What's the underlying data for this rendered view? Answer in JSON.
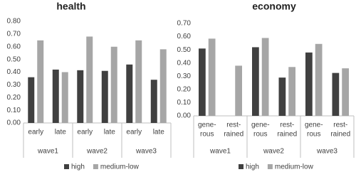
{
  "chart_data": [
    {
      "type": "bar",
      "title": "health",
      "categories": [
        "early",
        "late",
        "early",
        "late",
        "early",
        "late"
      ],
      "groups": [
        "wave1",
        "wave2",
        "wave3"
      ],
      "series": [
        {
          "name": "high",
          "color": "#404040",
          "values": [
            0.36,
            0.42,
            0.415,
            0.41,
            0.46,
            0.34
          ]
        },
        {
          "name": "medium-low",
          "color": "#a6a6a6",
          "values": [
            0.65,
            0.4,
            0.68,
            0.6,
            0.65,
            0.58
          ]
        }
      ],
      "ylim": [
        0,
        0.8
      ],
      "yticks": [
        {
          "value": 0,
          "label": "0.00"
        },
        {
          "value": 0.1,
          "label": "0.10"
        },
        {
          "value": 0.2,
          "label": "0.20"
        },
        {
          "value": 0.3,
          "label": "0.30"
        },
        {
          "value": 0.4,
          "label": "0.40"
        },
        {
          "value": 0.5,
          "label": "0.50"
        },
        {
          "value": 0.6,
          "label": "0.60"
        },
        {
          "value": 0.7,
          "label": "0.70"
        },
        {
          "value": 0.8,
          "label": "0.80"
        }
      ],
      "grid": false,
      "legend": "bottom"
    },
    {
      "type": "bar",
      "title": "economy",
      "categories": [
        [
          "gene-",
          "rous"
        ],
        [
          "rest-",
          "rained"
        ],
        [
          "gene-",
          "rous"
        ],
        [
          "rest-",
          "rained"
        ],
        [
          "gene-",
          "rous"
        ],
        [
          "rest-",
          "rained"
        ]
      ],
      "groups": [
        "wave1",
        "wave2",
        "wave3"
      ],
      "series": [
        {
          "name": "high",
          "color": "#404040",
          "values": [
            0.51,
            null,
            0.52,
            0.29,
            0.48,
            0.325
          ]
        },
        {
          "name": "medium-low",
          "color": "#a6a6a6",
          "values": [
            0.585,
            0.38,
            0.59,
            0.37,
            0.545,
            0.36
          ]
        }
      ],
      "ylim": [
        0,
        0.7
      ],
      "yticks": [
        {
          "value": 0,
          "label": "0.00"
        },
        {
          "value": 0.1,
          "label": "0.10"
        },
        {
          "value": 0.2,
          "label": "0.20"
        },
        {
          "value": 0.3,
          "label": "0.30"
        },
        {
          "value": 0.4,
          "label": "0.40"
        },
        {
          "value": 0.5,
          "label": "0.50"
        },
        {
          "value": 0.6,
          "label": "0.60"
        },
        {
          "value": 0.7,
          "label": "0.70"
        }
      ],
      "grid": false,
      "legend": "bottom"
    }
  ]
}
